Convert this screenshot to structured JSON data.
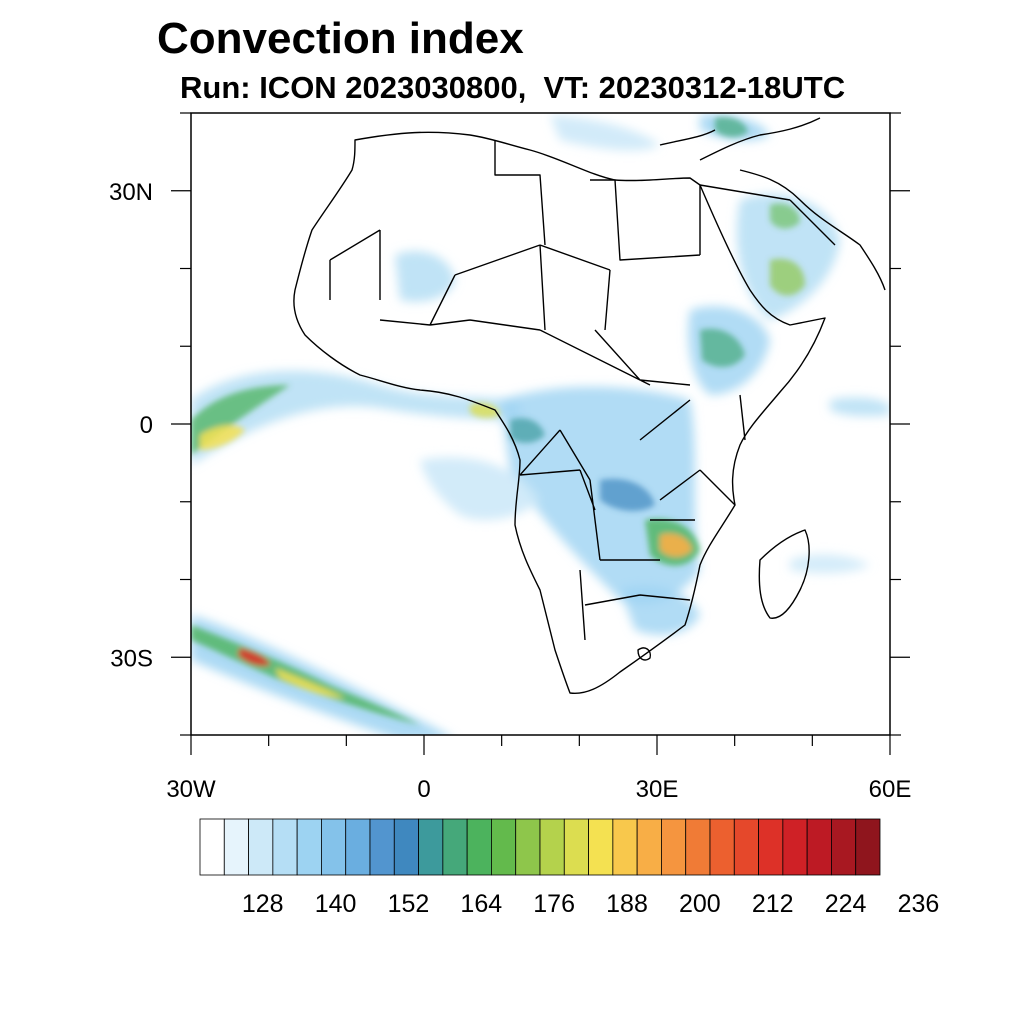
{
  "title": "Convection index",
  "subtitle": "Run: ICON 2023030800,  VT: 20230312-18UTC",
  "map": {
    "lon_range": [
      -30,
      60
    ],
    "lat_range": [
      -40,
      40
    ],
    "lat_ticks": [
      {
        "value": 30,
        "label": "30N"
      },
      {
        "value": 0,
        "label": "0"
      },
      {
        "value": -30,
        "label": "30S"
      }
    ],
    "lon_ticks": [
      {
        "value": -30,
        "label": "30W"
      },
      {
        "value": 0,
        "label": "0"
      },
      {
        "value": 30,
        "label": "30E"
      },
      {
        "value": 60,
        "label": "60E"
      }
    ]
  },
  "colorbar": {
    "labels": [
      "128",
      "140",
      "152",
      "164",
      "176",
      "188",
      "200",
      "212",
      "224",
      "236"
    ],
    "colors": [
      "#ffffff",
      "#e6f4fc",
      "#cde9f8",
      "#b5def5",
      "#9dd3f2",
      "#84c2ea",
      "#6aaee0",
      "#5295cf",
      "#3f88bf",
      "#3d9a9c",
      "#45a87a",
      "#4cb35d",
      "#63ba4c",
      "#8ec64b",
      "#b4d24c",
      "#dcdd50",
      "#f4e151",
      "#f8c84c",
      "#f8ae46",
      "#f5953f",
      "#f07b36",
      "#ec602f",
      "#e5482b",
      "#dd3128",
      "#cf2126",
      "#bd1a24",
      "#a81821",
      "#8f151d"
    ]
  }
}
